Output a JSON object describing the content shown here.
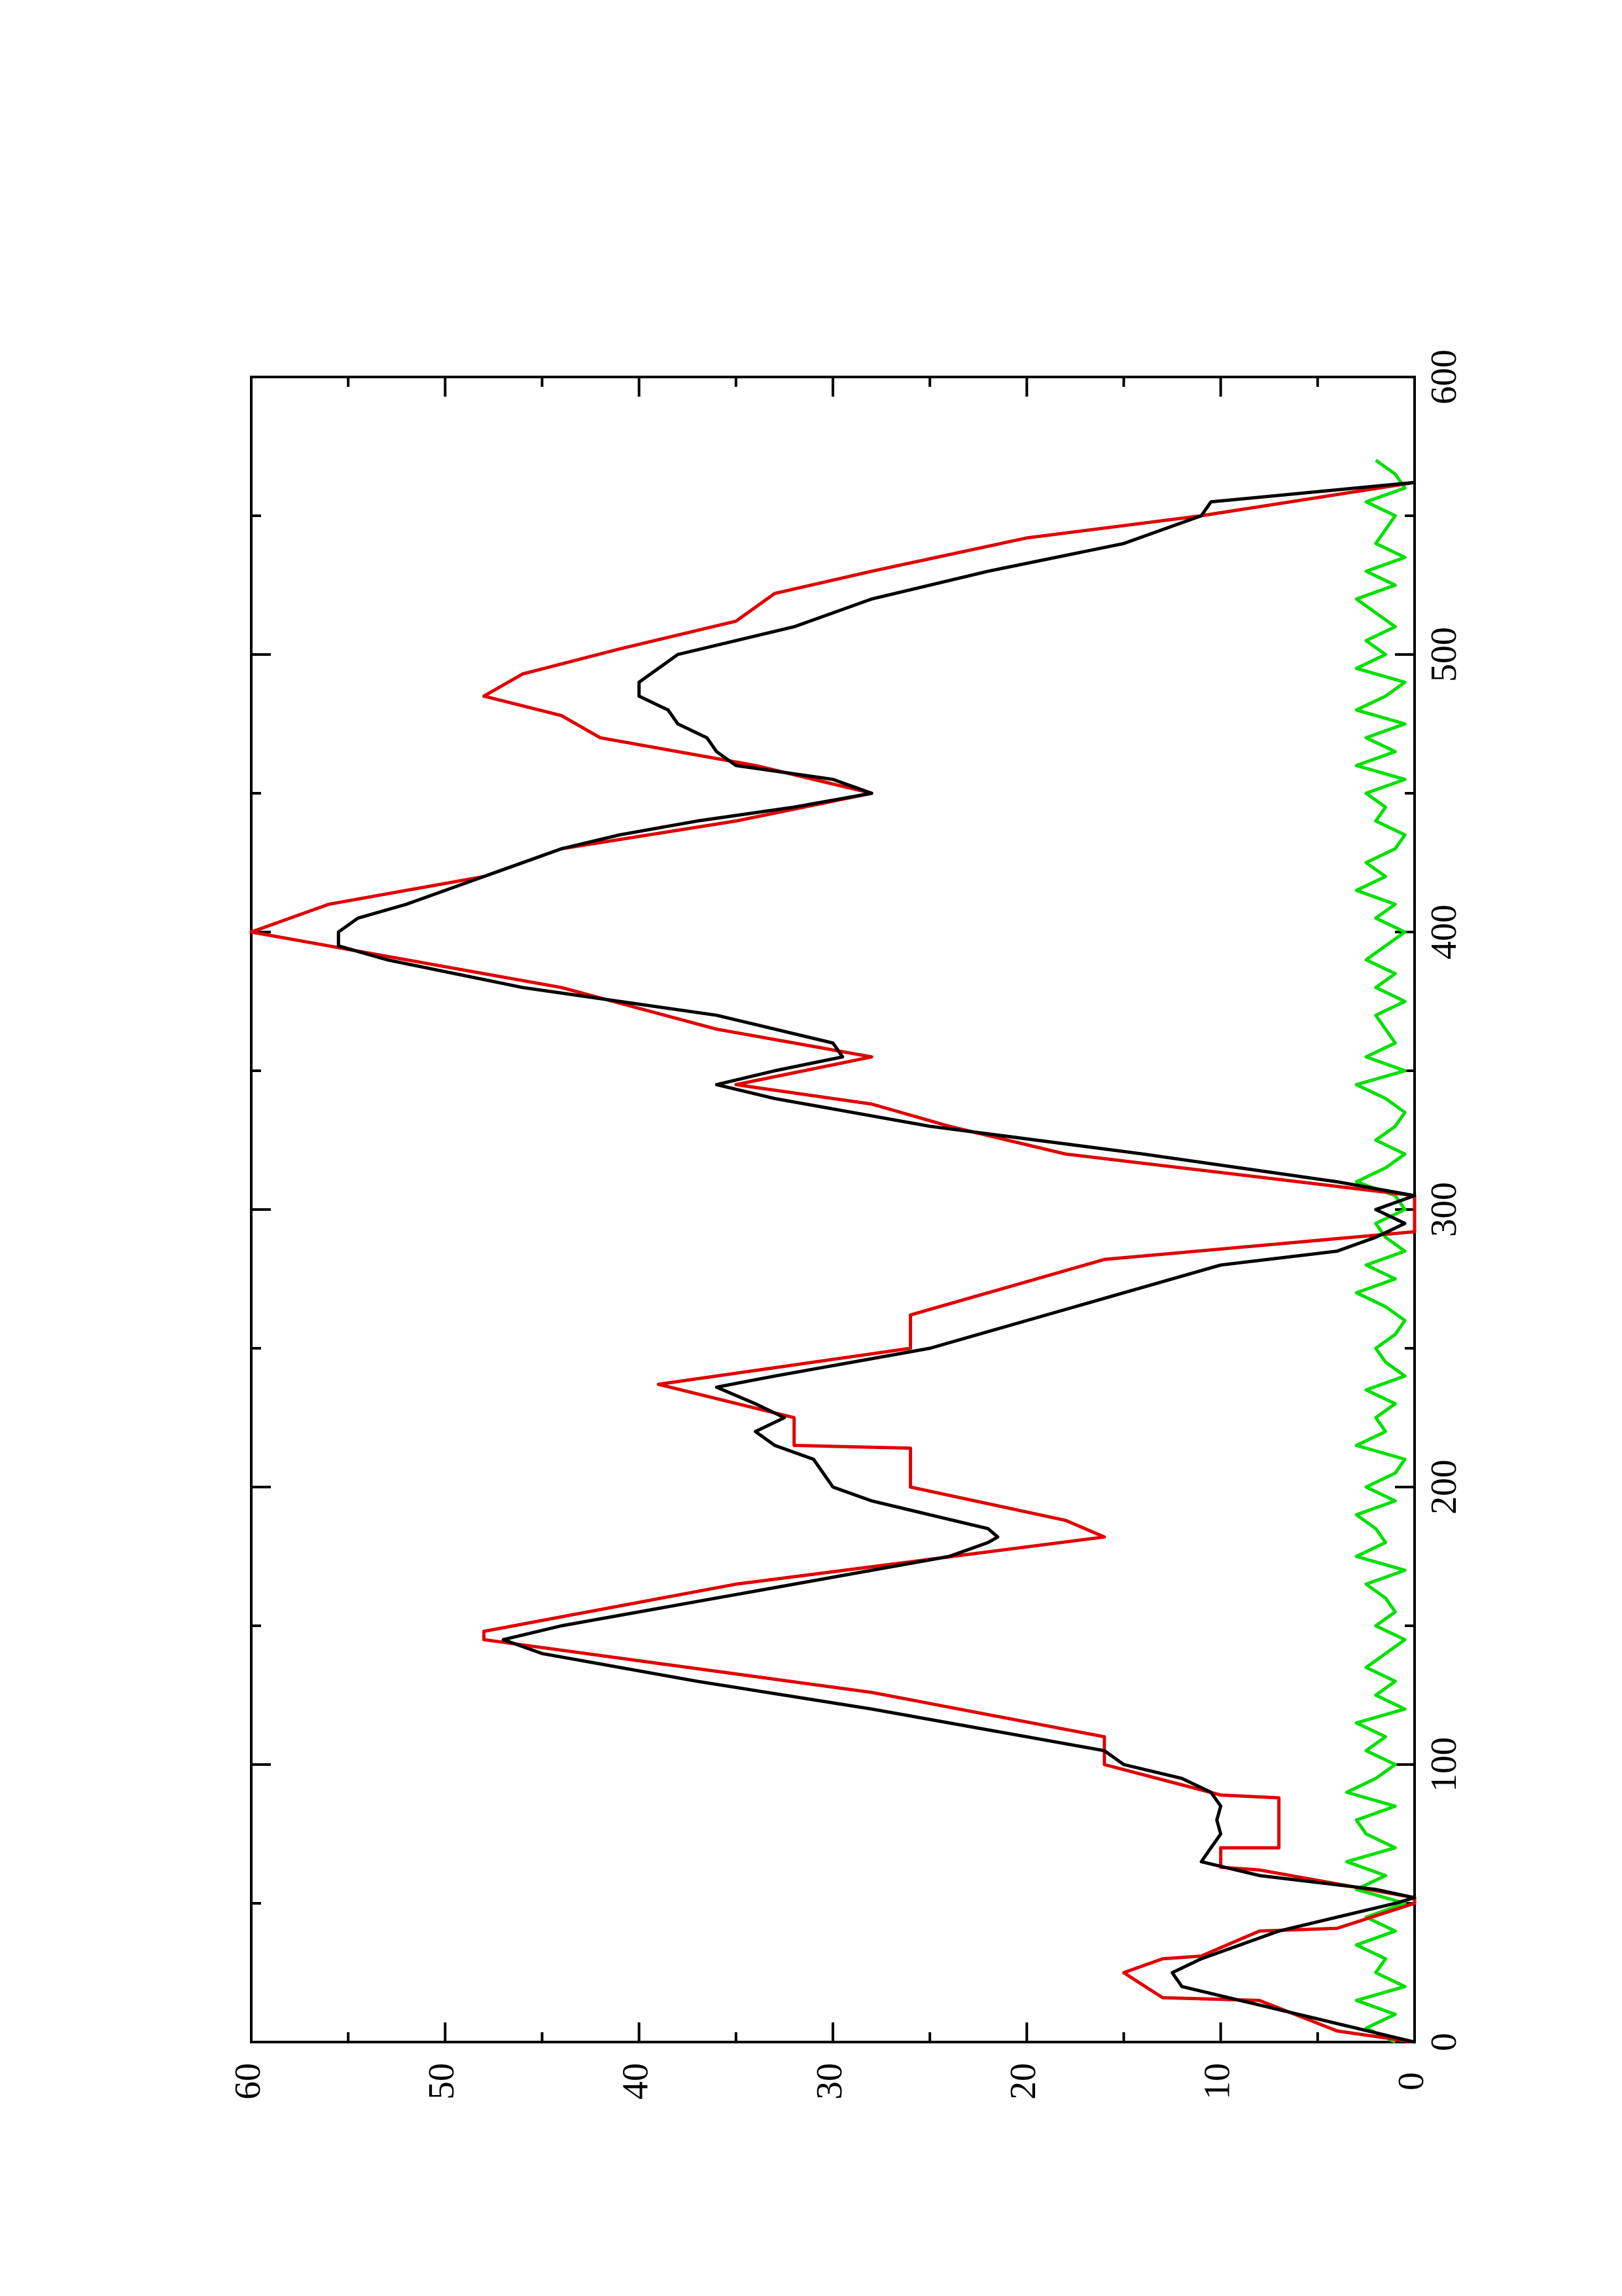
{
  "chart_data": {
    "type": "line",
    "orientation": "rotated",
    "xlim": [
      0,
      600
    ],
    "xticks": [
      0,
      100,
      200,
      300,
      400,
      500,
      600
    ],
    "xminorticks": [
      50,
      150,
      250,
      350,
      450,
      550
    ],
    "ylim": [
      0,
      60
    ],
    "yticks": [
      0,
      10,
      20,
      30,
      40,
      50,
      60
    ],
    "yminorticks": [
      5,
      15,
      25,
      35,
      45,
      55
    ],
    "series": [
      {
        "name": "red",
        "color": "#e00000",
        "x": [
          0,
          3,
          4,
          15,
          16,
          25,
          30,
          31,
          40,
          41,
          50,
          52,
          62,
          63,
          70,
          70,
          88,
          89,
          100,
          110,
          126,
          145,
          148,
          165,
          182,
          188,
          200,
          214,
          215,
          225,
          237,
          250,
          262,
          270,
          282,
          292,
          305,
          320,
          330,
          338,
          345,
          355,
          365,
          380,
          390,
          400,
          405,
          410,
          420,
          430,
          440,
          450,
          460,
          470,
          478,
          485,
          493,
          502,
          512,
          522,
          530,
          542,
          550,
          562
        ],
        "values": [
          0,
          3,
          4,
          8,
          13,
          15,
          13,
          11,
          8,
          4,
          0,
          0,
          8,
          10,
          10,
          7,
          7,
          10,
          16,
          16,
          28,
          48,
          48,
          35,
          16,
          18,
          26,
          26,
          32,
          32,
          39,
          26,
          26,
          22,
          16,
          0,
          0,
          18,
          24,
          28,
          35,
          28,
          36,
          44,
          52,
          60,
          58,
          56,
          48,
          44,
          35,
          28,
          34,
          42,
          44,
          48,
          46,
          41,
          35,
          33,
          28,
          20,
          11,
          0
        ]
      },
      {
        "name": "black",
        "color": "#000000",
        "x": [
          0,
          5,
          10,
          15,
          20,
          25,
          30,
          35,
          40,
          45,
          50,
          52,
          55,
          60,
          65,
          70,
          75,
          80,
          85,
          90,
          95,
          100,
          105,
          110,
          120,
          130,
          140,
          145,
          150,
          160,
          170,
          175,
          180,
          182,
          185,
          190,
          195,
          200,
          205,
          210,
          215,
          220,
          225,
          230,
          236,
          240,
          250,
          260,
          270,
          280,
          285,
          290,
          295,
          300,
          305,
          310,
          320,
          330,
          340,
          345,
          350,
          355,
          360,
          370,
          380,
          390,
          395,
          400,
          405,
          410,
          420,
          430,
          435,
          440,
          445,
          450,
          455,
          460,
          465,
          470,
          475,
          480,
          485,
          490,
          495,
          500,
          510,
          520,
          530,
          540,
          550,
          555,
          562
        ],
        "values": [
          0,
          3,
          6,
          9,
          12,
          12.5,
          11,
          9,
          7,
          4,
          1,
          0,
          2,
          8,
          11,
          10.5,
          10,
          10.2,
          10,
          10.5,
          12,
          15,
          16,
          20,
          28,
          37,
          45,
          47,
          44,
          36,
          28,
          24,
          22,
          21.5,
          22,
          25,
          28,
          30,
          30.5,
          31,
          33,
          34,
          32.5,
          34,
          36,
          33,
          25,
          20,
          15,
          10,
          4,
          2,
          0.5,
          2,
          0,
          4,
          14,
          25,
          33,
          36,
          33,
          29.5,
          30,
          36,
          46,
          53,
          55.5,
          55.5,
          54.5,
          52,
          48,
          44,
          41,
          37,
          32,
          28,
          30,
          35,
          36,
          36.5,
          38,
          38.5,
          40,
          40,
          39,
          38,
          32,
          28,
          22,
          15,
          11,
          10.5,
          0
        ]
      },
      {
        "name": "green",
        "color": "#00e000",
        "x": [
          0,
          5,
          10,
          15,
          20,
          25,
          30,
          35,
          40,
          45,
          50,
          55,
          60,
          65,
          70,
          75,
          80,
          85,
          90,
          95,
          100,
          105,
          110,
          115,
          120,
          125,
          130,
          135,
          140,
          145,
          150,
          155,
          160,
          165,
          170,
          175,
          180,
          185,
          190,
          195,
          200,
          205,
          210,
          215,
          220,
          225,
          230,
          235,
          240,
          245,
          250,
          255,
          260,
          265,
          270,
          275,
          280,
          285,
          290,
          295,
          300,
          305,
          310,
          315,
          320,
          325,
          330,
          335,
          340,
          345,
          350,
          355,
          360,
          365,
          370,
          375,
          380,
          385,
          390,
          395,
          400,
          405,
          410,
          415,
          420,
          425,
          430,
          435,
          440,
          445,
          450,
          455,
          460,
          465,
          470,
          475,
          480,
          485,
          490,
          495,
          500,
          505,
          510,
          515,
          520,
          525,
          530,
          535,
          540,
          545,
          550,
          555,
          560,
          565,
          570
        ],
        "values": [
          1,
          2.5,
          1,
          3,
          0.5,
          2,
          1.5,
          3,
          1,
          2.5,
          0.5,
          3,
          1.5,
          3.5,
          1,
          2.5,
          3,
          1,
          3.5,
          2,
          1,
          2.5,
          1.5,
          3,
          0.5,
          2,
          1,
          2.5,
          1.5,
          0.5,
          2,
          1,
          1.5,
          2.5,
          0.5,
          3,
          1.5,
          2,
          3,
          1,
          2.5,
          1,
          0.5,
          3,
          1.5,
          2,
          1,
          2.5,
          0.5,
          1.5,
          2,
          1,
          0.5,
          1.5,
          3,
          1,
          2.5,
          0.5,
          1.5,
          2,
          0.5,
          1,
          3,
          1.5,
          0.5,
          2,
          1,
          0.5,
          1.5,
          3,
          0.5,
          2.5,
          1,
          1.5,
          2,
          0.5,
          2,
          1,
          2.5,
          1.5,
          0.5,
          2,
          1,
          3,
          1.5,
          2.5,
          1,
          0.5,
          2,
          1.5,
          2.5,
          0.5,
          3,
          1,
          2.5,
          0.5,
          3,
          1.5,
          0.5,
          3,
          1.5,
          2.5,
          1,
          2,
          3,
          1,
          2.5,
          0.5,
          2,
          1.5,
          1,
          2.5,
          0.5,
          1,
          2
        ]
      }
    ]
  }
}
